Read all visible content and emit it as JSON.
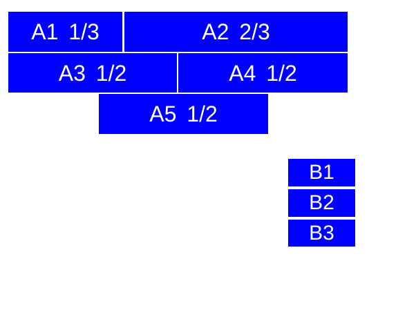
{
  "colors": {
    "cell_fill": "#0000ff",
    "cell_text": "#ffffff",
    "page_background": "#ffffff"
  },
  "table_a": {
    "cells": [
      {
        "label": "A1 1/3"
      },
      {
        "label": "A2 2/3"
      },
      {
        "label": "A3 1/2"
      },
      {
        "label": "A4 1/2"
      },
      {
        "label": "A5 1/2"
      }
    ]
  },
  "table_b": {
    "cells": [
      {
        "label": "B1"
      },
      {
        "label": "B2"
      },
      {
        "label": "B3"
      }
    ]
  }
}
